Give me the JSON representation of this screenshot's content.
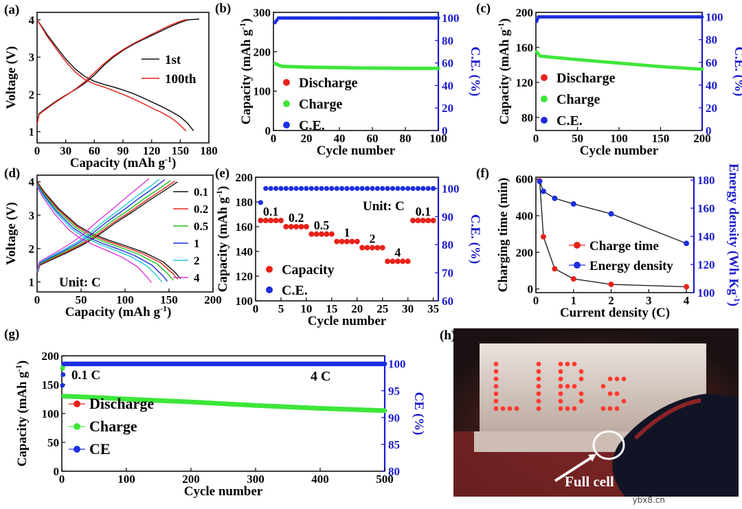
{
  "colors": {
    "red": "#e8221a",
    "green": "#3ee63a",
    "blue": "#1c2ee0",
    "ce_axis": "#1a1acc",
    "black": "#111111"
  },
  "chart_data": [
    {
      "panel": "(a)",
      "type": "line",
      "xlabel": "Capacity (mAh g",
      "xlabel_sup": "-1",
      "xlabel_tail": ")",
      "ylabel": "Voltage (V)",
      "xlim": [
        0,
        180
      ],
      "ylim": [
        0.7,
        4.2
      ],
      "xticks": [
        0,
        30,
        60,
        90,
        120,
        150,
        180
      ],
      "yticks": [
        1,
        2,
        3,
        4
      ],
      "legend": "center-right",
      "series": [
        {
          "name": "1st",
          "color": "#111111",
          "discharge": [
            [
              0,
              4.0
            ],
            [
              5,
              3.82
            ],
            [
              10,
              3.62
            ],
            [
              20,
              3.28
            ],
            [
              30,
              2.95
            ],
            [
              40,
              2.68
            ],
            [
              50,
              2.48
            ],
            [
              60,
              2.35
            ],
            [
              70,
              2.27
            ],
            [
              80,
              2.2
            ],
            [
              90,
              2.12
            ],
            [
              100,
              2.03
            ],
            [
              110,
              1.92
            ],
            [
              120,
              1.8
            ],
            [
              130,
              1.68
            ],
            [
              140,
              1.55
            ],
            [
              150,
              1.4
            ],
            [
              158,
              1.22
            ],
            [
              164,
              1.02
            ]
          ],
          "charge": [
            [
              0,
              1.2
            ],
            [
              2,
              1.48
            ],
            [
              8,
              1.6
            ],
            [
              20,
              1.82
            ],
            [
              30,
              1.98
            ],
            [
              40,
              2.13
            ],
            [
              50,
              2.3
            ],
            [
              60,
              2.52
            ],
            [
              70,
              2.78
            ],
            [
              80,
              3.0
            ],
            [
              90,
              3.18
            ],
            [
              100,
              3.33
            ],
            [
              110,
              3.46
            ],
            [
              120,
              3.58
            ],
            [
              130,
              3.7
            ],
            [
              140,
              3.82
            ],
            [
              150,
              3.93
            ],
            [
              158,
              4.0
            ],
            [
              170,
              4.02
            ]
          ]
        },
        {
          "name": "100th",
          "color": "#e8221a",
          "discharge": [
            [
              0,
              4.0
            ],
            [
              5,
              3.8
            ],
            [
              10,
              3.58
            ],
            [
              20,
              3.22
            ],
            [
              30,
              2.88
            ],
            [
              40,
              2.6
            ],
            [
              50,
              2.4
            ],
            [
              60,
              2.28
            ],
            [
              70,
              2.2
            ],
            [
              80,
              2.1
            ],
            [
              90,
              2.0
            ],
            [
              100,
              1.89
            ],
            [
              110,
              1.77
            ],
            [
              120,
              1.64
            ],
            [
              130,
              1.52
            ],
            [
              140,
              1.38
            ],
            [
              148,
              1.22
            ],
            [
              156,
              1.02
            ]
          ],
          "charge": [
            [
              0,
              1.2
            ],
            [
              2,
              1.46
            ],
            [
              8,
              1.58
            ],
            [
              20,
              1.8
            ],
            [
              30,
              1.97
            ],
            [
              40,
              2.14
            ],
            [
              50,
              2.34
            ],
            [
              60,
              2.58
            ],
            [
              70,
              2.82
            ],
            [
              80,
              3.03
            ],
            [
              90,
              3.2
            ],
            [
              100,
              3.35
            ],
            [
              110,
              3.48
            ],
            [
              120,
              3.61
            ],
            [
              130,
              3.74
            ],
            [
              140,
              3.86
            ],
            [
              150,
              3.96
            ],
            [
              157,
              4.01
            ]
          ]
        }
      ]
    },
    {
      "panel": "(b)",
      "type": "scatter",
      "xlabel": "Cycle number",
      "ylabel": "Capacity (mAh g",
      "ylabel_sup": "-1",
      "ylabel_tail": ")",
      "y2label": "C.E. (%)",
      "xlim": [
        0,
        100
      ],
      "ylim": [
        0,
        300
      ],
      "y2lim": [
        0,
        105
      ],
      "xticks": [
        0,
        20,
        40,
        60,
        80,
        100
      ],
      "yticks": [
        0,
        100,
        200,
        300
      ],
      "y2ticks": [
        0,
        20,
        40,
        60,
        80,
        100
      ],
      "legend": [
        "Discharge",
        "Charge",
        "C.E."
      ],
      "n_cycles": 100,
      "capacity_curve": [
        [
          1,
          170
        ],
        [
          5,
          163
        ],
        [
          20,
          161
        ],
        [
          50,
          159
        ],
        [
          80,
          158
        ],
        [
          100,
          158
        ]
      ],
      "ce_curve": [
        [
          1,
          96
        ],
        [
          3,
          100
        ],
        [
          100,
          100
        ]
      ]
    },
    {
      "panel": "(c)",
      "type": "scatter",
      "xlabel": "Cycle number",
      "ylabel": "Capacity (mAh g",
      "ylabel_sup": "-1",
      "ylabel_tail": ")",
      "y2label": "C.E. (%)",
      "xlim": [
        0,
        200
      ],
      "ylim": [
        65,
        200
      ],
      "y2lim": [
        0,
        104
      ],
      "xticks": [
        0,
        50,
        100,
        150,
        200
      ],
      "yticks": [
        80,
        120,
        160,
        200
      ],
      "y2ticks": [
        0,
        20,
        40,
        60,
        80,
        100
      ],
      "legend": [
        "Discharge",
        "Charge",
        "C.E."
      ],
      "n_cycles": 200,
      "capacity_curve": [
        [
          1,
          155
        ],
        [
          5,
          150
        ],
        [
          50,
          146
        ],
        [
          100,
          142
        ],
        [
          150,
          138
        ],
        [
          200,
          135
        ]
      ],
      "ce_curve": [
        [
          1,
          96
        ],
        [
          3,
          100
        ],
        [
          200,
          100
        ]
      ]
    },
    {
      "panel": "(d)",
      "type": "line",
      "xlabel": "Capacity (mAh g",
      "xlabel_sup": "-1",
      "xlabel_tail": ")",
      "ylabel": "Voltage (V)",
      "xlim": [
        0,
        200
      ],
      "ylim": [
        0.7,
        4.2
      ],
      "xticks": [
        0,
        50,
        100,
        150,
        200
      ],
      "yticks": [
        1,
        2,
        3,
        4
      ],
      "annotation": "Unit: C",
      "series": [
        {
          "name": "0.1",
          "color": "#111111",
          "cap": 163,
          "dEnd": 1.1
        },
        {
          "name": "0.2",
          "color": "#e8221a",
          "cap": 160,
          "dEnd": 1.08
        },
        {
          "name": "0.5",
          "color": "#22c022",
          "cap": 155,
          "dEnd": 1.05
        },
        {
          "name": "1",
          "color": "#1c2ee0",
          "cap": 148,
          "dEnd": 1.02
        },
        {
          "name": "2",
          "color": "#22c8d8",
          "cap": 142,
          "dEnd": 1.0
        },
        {
          "name": "4",
          "color": "#d83ad8",
          "cap": 130,
          "dEnd": 0.98
        }
      ]
    },
    {
      "panel": "(e)",
      "type": "scatter",
      "xlabel": "Cycle number",
      "ylabel": "Capacity (mAh g",
      "ylabel_sup": "-1",
      "ylabel_tail": ")",
      "y2label": "C.E. (%)",
      "xlim": [
        0,
        36
      ],
      "ylim": [
        100,
        200
      ],
      "y2lim": [
        60,
        104
      ],
      "xticks": [
        0,
        5,
        10,
        15,
        20,
        25,
        30,
        35
      ],
      "yticks": [
        100,
        120,
        140,
        160,
        180,
        200
      ],
      "y2ticks": [
        60,
        70,
        80,
        90,
        100
      ],
      "annotation": "Unit: C",
      "legend": [
        "Capacity",
        "C.E."
      ],
      "groups": [
        {
          "label": "0.1",
          "start": 1,
          "end": 5,
          "value": 165
        },
        {
          "label": "0.2",
          "start": 6,
          "end": 10,
          "value": 160
        },
        {
          "label": "0.5",
          "start": 11,
          "end": 15,
          "value": 154
        },
        {
          "label": "1",
          "start": 16,
          "end": 20,
          "value": 148
        },
        {
          "label": "2",
          "start": 21,
          "end": 25,
          "value": 143
        },
        {
          "label": "4",
          "start": 26,
          "end": 30,
          "value": 132
        },
        {
          "label": "0.1",
          "start": 31,
          "end": 35,
          "value": 165
        }
      ],
      "ce_first": 95,
      "ce_rest": 100
    },
    {
      "panel": "(f)",
      "type": "line",
      "xlabel": "Current density (C)",
      "ylabel": "Charging time (min)",
      "y2label": "Energy density (Wh Kg",
      "y2label_sup": "-1",
      "y2label_tail": ")",
      "xlim": [
        0,
        4.2
      ],
      "ylim": [
        -20,
        610
      ],
      "y2lim": [
        100,
        182
      ],
      "xticks": [
        0,
        1,
        2,
        3,
        4
      ],
      "yticks": [
        0,
        200,
        400,
        600
      ],
      "y2ticks": [
        100,
        120,
        140,
        160,
        180
      ],
      "x": [
        0.1,
        0.2,
        0.5,
        1,
        2,
        4
      ],
      "series": [
        {
          "name": "Charge time",
          "color": "#e8221a",
          "axis": "left",
          "values": [
            590,
            285,
            110,
            55,
            25,
            12
          ]
        },
        {
          "name": "Energy density",
          "color": "#1c2ee0",
          "axis": "right",
          "values": [
            179,
            172,
            167,
            163,
            156,
            135
          ]
        }
      ]
    },
    {
      "panel": "(g)",
      "type": "scatter",
      "xlabel": "Cycle number",
      "ylabel": "Capacity (mAh g",
      "ylabel_sup": "-1",
      "ylabel_tail": ")",
      "y2label": "CE (%)",
      "xlim": [
        0,
        500
      ],
      "ylim": [
        0,
        200
      ],
      "y2lim": [
        80,
        101.5
      ],
      "xticks": [
        0,
        100,
        200,
        300,
        400,
        500
      ],
      "yticks": [
        0,
        50,
        100,
        150,
        200
      ],
      "y2ticks": [
        80,
        85,
        90,
        95,
        100
      ],
      "annotations": [
        "0.1 C",
        "4 C"
      ],
      "legend": [
        "Discharge",
        "Charge",
        "CE"
      ],
      "n_cycles": 500,
      "capacity_curve": [
        [
          1,
          178
        ],
        [
          2,
          182
        ],
        [
          3,
          130
        ],
        [
          50,
          128
        ],
        [
          100,
          125
        ],
        [
          200,
          120
        ],
        [
          300,
          114
        ],
        [
          400,
          109
        ],
        [
          500,
          105
        ]
      ],
      "ce_curve": [
        [
          1,
          96
        ],
        [
          2,
          98
        ],
        [
          3,
          100
        ],
        [
          500,
          100
        ]
      ]
    }
  ],
  "photo": {
    "panel": "(h)",
    "sign_text": "LIBs",
    "callout": "Full cell"
  },
  "watermark": "ybx8.cn"
}
